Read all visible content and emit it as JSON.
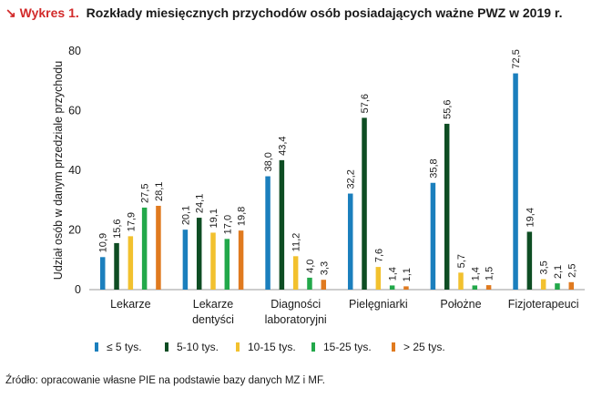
{
  "header": {
    "lead": "↘ Wykres 1.",
    "title": "Rozkłady miesięcznych przychodów osób posiadających ważne PWZ w 2019 r."
  },
  "source": "Źródło: opracowanie własne PIE na podstawie bazy danych MZ i MF.",
  "chart_data": {
    "type": "bar",
    "title": "Rozkłady miesięcznych przychodów osób posiadających ważne PWZ w 2019 r.",
    "ylabel": "Udział osób w danym przedziale przychodu",
    "xlabel": "",
    "ylim": [
      0,
      80
    ],
    "yticks": [
      0,
      20,
      40,
      60,
      80
    ],
    "grid": false,
    "legend_position": "bottom",
    "categories": [
      [
        "Lekarze"
      ],
      [
        "Lekarze",
        "dentyści"
      ],
      [
        "Diagności",
        "laboratoryjni"
      ],
      [
        "Pielęgniarki"
      ],
      [
        "Położne"
      ],
      [
        "Fizjoterapeuci"
      ]
    ],
    "series": [
      {
        "name": "≤ 5 tys.",
        "color": "#1b7fbd",
        "values": [
          10.9,
          20.1,
          38.0,
          32.2,
          35.8,
          72.5
        ],
        "labels": [
          "10,9",
          "20,1",
          "38,0",
          "32,2",
          "35,8",
          "72,5"
        ]
      },
      {
        "name": "5-10 tys.",
        "color": "#0e4d23",
        "values": [
          15.6,
          24.1,
          43.4,
          57.6,
          55.6,
          19.4
        ],
        "labels": [
          "15,6",
          "24,1",
          "43,4",
          "57,6",
          "55,6",
          "19,4"
        ]
      },
      {
        "name": "10-15 tys.",
        "color": "#f2c12e",
        "values": [
          17.9,
          19.1,
          11.2,
          7.6,
          5.7,
          3.5
        ],
        "labels": [
          "17,9",
          "19,1",
          "11,2",
          "7,6",
          "5,7",
          "3,5"
        ]
      },
      {
        "name": "15-25 tys.",
        "color": "#22a84a",
        "values": [
          27.5,
          17.0,
          4.0,
          1.4,
          1.4,
          2.1
        ],
        "labels": [
          "27,5",
          "17,0",
          "4,0",
          "1,4",
          "1,4",
          "2,1"
        ]
      },
      {
        "name": "> 25 tys.",
        "color": "#e07a1f",
        "values": [
          28.1,
          19.8,
          3.3,
          1.1,
          1.5,
          2.5
        ],
        "labels": [
          "28,1",
          "19,8",
          "3,3",
          "1,1",
          "1,5",
          "2,5"
        ]
      }
    ]
  }
}
